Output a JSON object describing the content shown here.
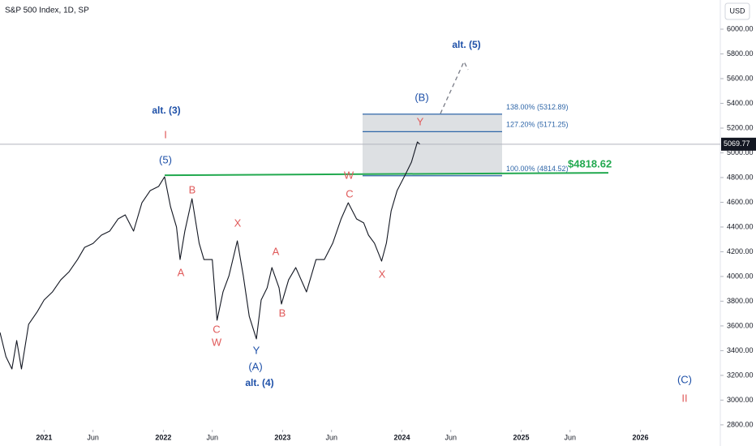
{
  "chart_data": {
    "type": "line",
    "title": "S&P 500 Index, 1D, SP",
    "currency": "USD",
    "color": "#131722",
    "x": [
      2020.63,
      2020.68,
      2020.73,
      2020.77,
      2020.81,
      2020.87,
      2020.94,
      2021.0,
      2021.07,
      2021.14,
      2021.21,
      2021.28,
      2021.34,
      2021.41,
      2021.48,
      2021.55,
      2021.62,
      2021.68,
      2021.75,
      2021.82,
      2021.89,
      2021.96,
      2022.01,
      2022.06,
      2022.11,
      2022.14,
      2022.18,
      2022.24,
      2022.3,
      2022.34,
      2022.41,
      2022.45,
      2022.5,
      2022.55,
      2022.62,
      2022.67,
      2022.72,
      2022.78,
      2022.82,
      2022.87,
      2022.91,
      2022.97,
      2022.99,
      2023.05,
      2023.11,
      2023.2,
      2023.28,
      2023.35,
      2023.42,
      2023.49,
      2023.55,
      2023.62,
      2023.68,
      2023.72,
      2023.77,
      2023.83,
      2023.87,
      2023.91,
      2023.96,
      2024.03,
      2024.08,
      2024.13,
      2024.15
    ],
    "values": [
      3547,
      3351,
      3252,
      3482,
      3252,
      3613,
      3711,
      3810,
      3875,
      3973,
      4039,
      4137,
      4236,
      4267,
      4334,
      4367,
      4465,
      4498,
      4367,
      4596,
      4695,
      4728,
      4806,
      4564,
      4400,
      4137,
      4367,
      4629,
      4269,
      4137,
      4137,
      3646,
      3875,
      4006,
      4288,
      4006,
      3678,
      3495,
      3810,
      3908,
      4072,
      3908,
      3777,
      3973,
      4072,
      3875,
      4137,
      4137,
      4269,
      4465,
      4596,
      4465,
      4433,
      4334,
      4269,
      4124,
      4269,
      4531,
      4695,
      4826,
      4924,
      5088,
      5070
    ],
    "last_price": 5069.77,
    "support": {
      "value": 4818.62,
      "label": "$4818.62",
      "color": "#22a94f"
    },
    "fib_levels": [
      {
        "value": 5312.89,
        "label": "138.00% (5312.89)"
      },
      {
        "value": 5171.25,
        "label": "127.20% (5171.25)"
      },
      {
        "value": 4814.52,
        "label": "100.00% (4814.52)"
      }
    ],
    "annotations": [
      "alt. (3)",
      "I",
      "(5)",
      "B",
      "A",
      "X",
      "C",
      "W",
      "Y",
      "(A)",
      "alt. (4)",
      "A",
      "B",
      "W",
      "C",
      "X",
      "Y",
      "(B)",
      "alt. (5)",
      "(C)",
      "II"
    ],
    "xlim": [
      2020.63,
      2026.67
    ],
    "ylim": [
      2760,
      6236
    ],
    "xticks": [
      2021,
      {
        "value": 2021.41,
        "label": "Jun"
      },
      2022,
      {
        "value": 2022.41,
        "label": "Jun"
      },
      2023,
      {
        "value": 2023.41,
        "label": "Jun"
      },
      2024,
      {
        "value": 2024.41,
        "label": "Jun"
      },
      2025,
      {
        "value": 2025.41,
        "label": "Jun"
      },
      2026
    ],
    "yticks": [
      {
        "value": 2800,
        "label": "2800.00"
      },
      {
        "value": 3000,
        "label": "3000.00"
      },
      {
        "value": 3200,
        "label": "3200.00"
      },
      {
        "value": 3400,
        "label": "3400.00"
      },
      {
        "value": 3600,
        "label": "3600.00"
      },
      {
        "value": 3800,
        "label": "3800.00"
      },
      {
        "value": 4000,
        "label": "4000.00"
      },
      {
        "value": 4200,
        "label": "4200.00"
      },
      {
        "value": 4400,
        "label": "4400.00"
      },
      {
        "value": 4600,
        "label": "4600.00"
      },
      {
        "value": 4800,
        "label": "4800.00"
      },
      {
        "value": 5000,
        "label": "5000.00"
      },
      {
        "value": 5200,
        "label": "5200.00"
      },
      {
        "value": 5400,
        "label": "5400.00"
      },
      {
        "value": 5600,
        "label": "5600.00"
      },
      {
        "value": 5800,
        "label": "5800.00"
      },
      {
        "value": 6000,
        "label": "6000.00"
      }
    ]
  }
}
